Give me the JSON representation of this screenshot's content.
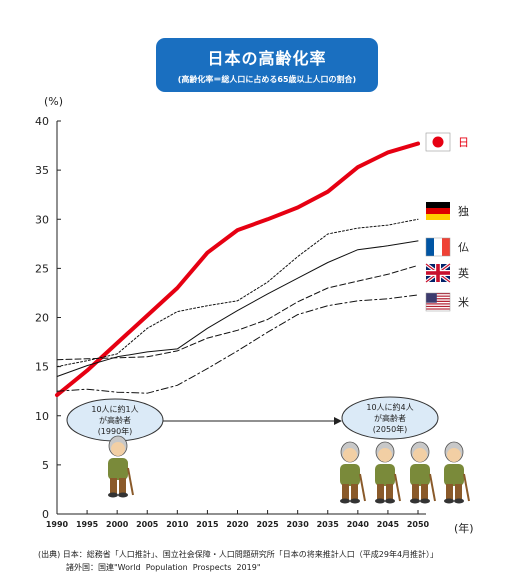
{
  "header": {
    "title": "日本の高齢化率",
    "subtitle": "(高齢化率＝総人口に占める65歳以上人口の割合)"
  },
  "axis": {
    "y_unit": "(%)",
    "x_unit": "(年)"
  },
  "annotations": {
    "left_bubble": [
      "10人に約1人",
      "が高齢者",
      "(1990年)"
    ],
    "right_bubble": [
      "10人に約4人",
      "が高齢者",
      "(2050年)"
    ]
  },
  "source": {
    "line1": "(出典) 日本：総務省「人口推計」、国立社会保障・人口問題研究所「日本の将来推計人口（平成29年4月推計）」",
    "line2": "諸外国：国連\"World  Population  Prospects  2019\""
  },
  "colors": {
    "japan": "#e60012",
    "others": "#111111",
    "title_bg": "#1a6fc0"
  },
  "icons": {
    "flags": [
      "japan-flag",
      "germany-flag",
      "france-flag",
      "uk-flag",
      "usa-flag"
    ],
    "people": [
      "elderly-person-icon"
    ]
  },
  "chart_data": {
    "type": "line",
    "x": [
      1990,
      1995,
      2000,
      2005,
      2010,
      2015,
      2020,
      2025,
      2030,
      2035,
      2040,
      2045,
      2050
    ],
    "ylim": [
      0,
      40
    ],
    "yticks": [
      0,
      5,
      10,
      15,
      20,
      25,
      30,
      35,
      40
    ],
    "xticks": [
      "1990",
      "1995",
      "2000",
      "2005",
      "2010",
      "2015",
      "2020",
      "2025",
      "2030",
      "2035",
      "2040",
      "2045",
      "2050"
    ],
    "series": [
      {
        "name": "日",
        "style": "solid-thick",
        "values": [
          12.1,
          14.6,
          17.4,
          20.2,
          23.0,
          26.6,
          28.9,
          30.0,
          31.2,
          32.8,
          35.3,
          36.8,
          37.7
        ]
      },
      {
        "name": "独",
        "style": "dotted",
        "values": [
          15.0,
          15.6,
          16.3,
          18.9,
          20.6,
          21.2,
          21.7,
          23.6,
          26.2,
          28.5,
          29.1,
          29.4,
          30.0
        ]
      },
      {
        "name": "仏",
        "style": "solid-thin",
        "values": [
          14.0,
          15.1,
          16.0,
          16.5,
          16.8,
          18.9,
          20.7,
          22.4,
          24.0,
          25.6,
          26.9,
          27.3,
          27.8
        ]
      },
      {
        "name": "英",
        "style": "dashed",
        "values": [
          15.7,
          15.8,
          15.9,
          16.0,
          16.6,
          17.9,
          18.7,
          19.8,
          21.6,
          23.0,
          23.7,
          24.4,
          25.3
        ]
      },
      {
        "name": "米",
        "style": "dash-dot",
        "values": [
          12.5,
          12.7,
          12.4,
          12.3,
          13.1,
          14.8,
          16.6,
          18.5,
          20.3,
          21.2,
          21.7,
          21.9,
          22.3
        ]
      }
    ]
  }
}
